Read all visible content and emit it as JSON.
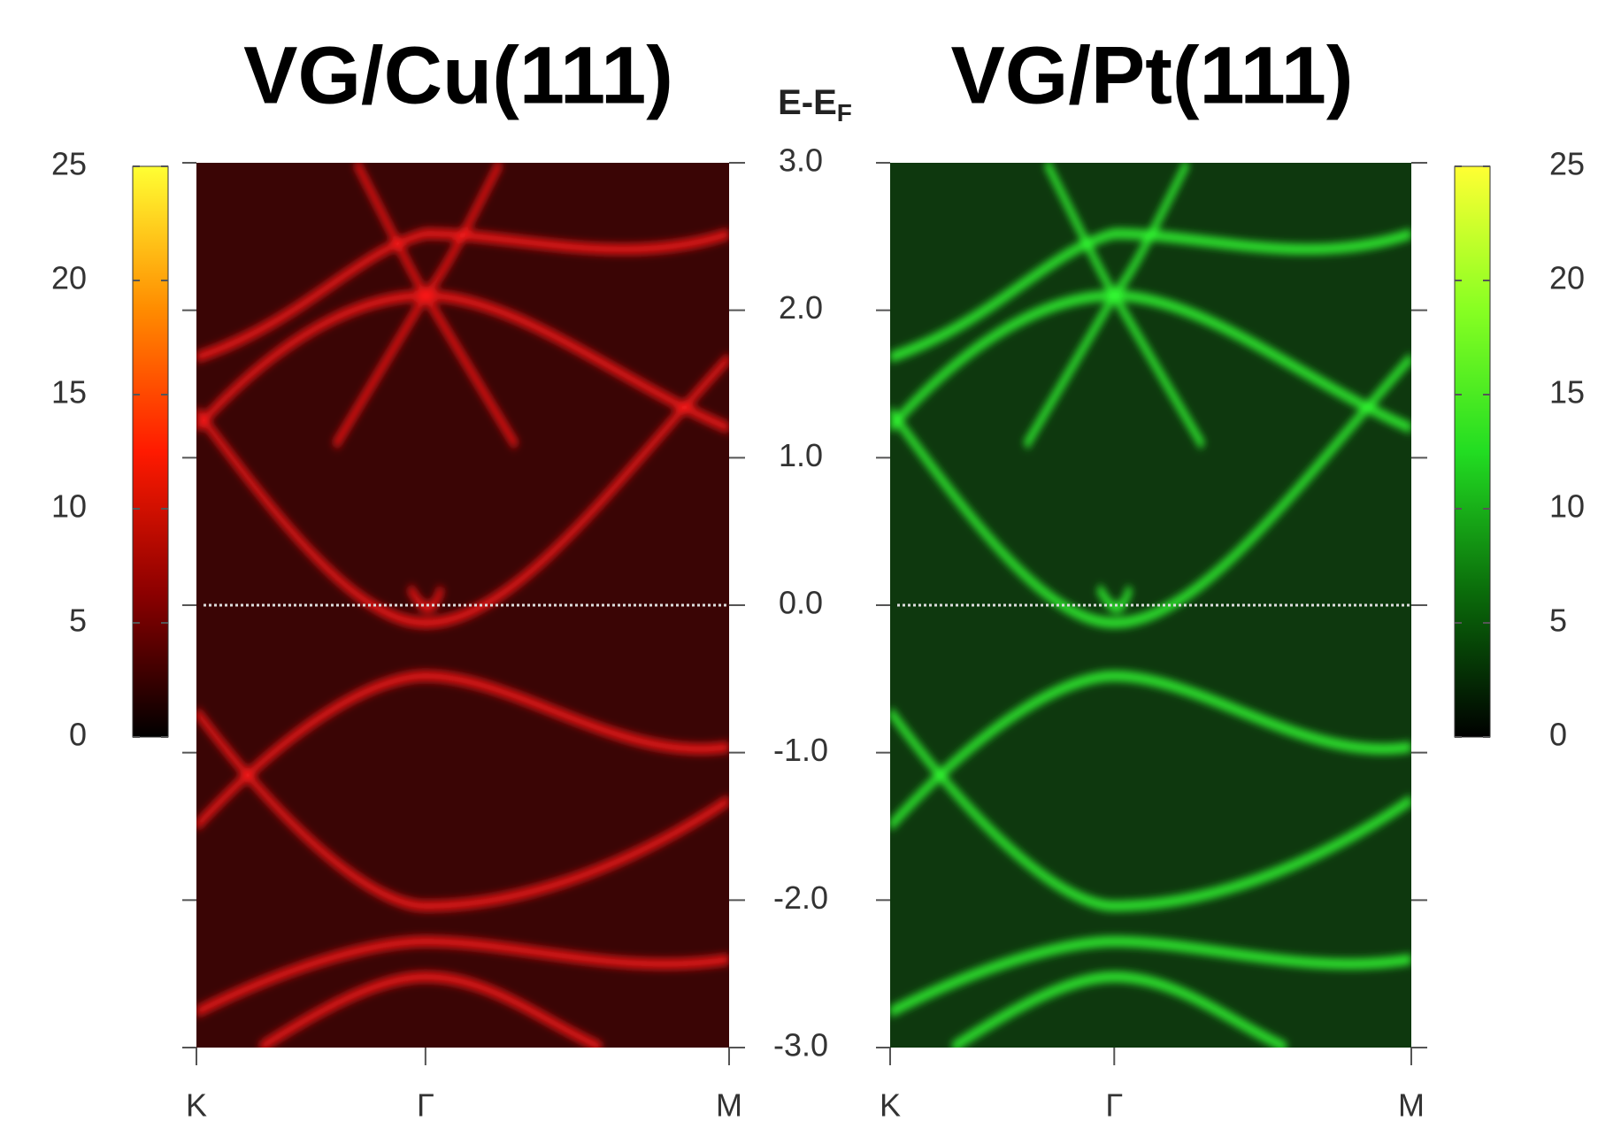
{
  "chart_data": [
    {
      "type": "heatmap",
      "title": "VG/Cu(111)",
      "categories": [
        "K",
        "Γ",
        "M"
      ],
      "y_label": "E-E",
      "y_label_subscript": "F",
      "ylim": [
        -3,
        3
      ],
      "yticks": [
        {
          "value": -3,
          "label": "-3.0"
        },
        {
          "value": -2,
          "label": "-2.0"
        },
        {
          "value": -1,
          "label": "-1.0"
        },
        {
          "value": 0,
          "label": "0.0"
        },
        {
          "value": 1,
          "label": "1.0"
        },
        {
          "value": 2,
          "label": "2.0"
        },
        {
          "value": 3,
          "label": "3.0"
        }
      ],
      "background": "#3a0505",
      "color": "#ff1a1a",
      "colorbar": {
        "lim": [
          0,
          25
        ],
        "ticks": [
          0,
          5,
          10,
          15,
          20,
          25
        ],
        "colors": [
          "#000000",
          "#8b0000",
          "#ff1a00",
          "#ff8c00",
          "#ffff33"
        ],
        "position": "left"
      }
    },
    {
      "type": "heatmap",
      "title": "VG/Pt(111)",
      "categories": [
        "K",
        "Γ",
        "M"
      ],
      "ylim": [
        -3,
        3
      ],
      "background": "#0e380e",
      "color": "#33ff33",
      "colorbar": {
        "lim": [
          0,
          25
        ],
        "ticks": [
          0,
          5,
          10,
          15,
          20,
          25
        ],
        "colors": [
          "#000000",
          "#0a6a0a",
          "#22dd22",
          "#88ff22",
          "#ffff33"
        ],
        "position": "right"
      }
    }
  ]
}
